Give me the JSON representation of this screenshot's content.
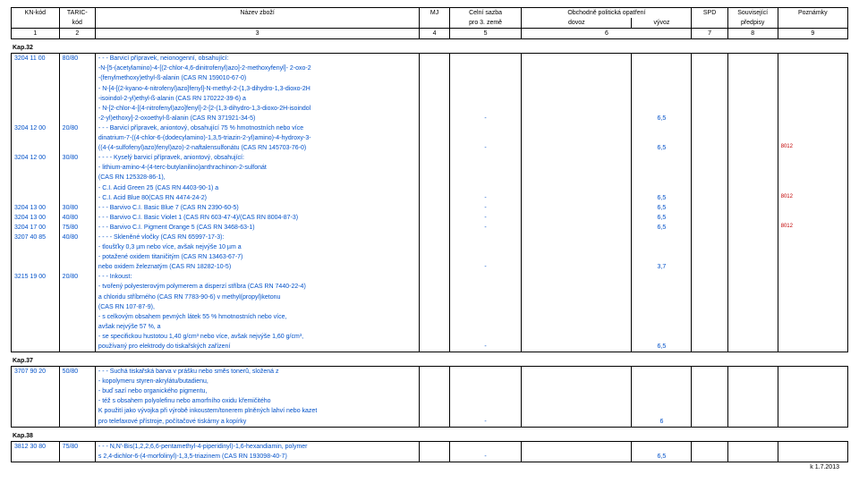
{
  "header": {
    "cols": [
      "KN-kód",
      "TARIC-",
      "Název zboží",
      "MJ",
      "Celní sazba",
      "Obchodně politická opatření",
      "SPD",
      "Související",
      "Poznámky"
    ],
    "sub": {
      "taric": "kód",
      "celni": "pro 3. země",
      "dovoz": "dovoz",
      "vyvoz": "vývoz",
      "souv": "předpisy"
    },
    "nums": [
      "1",
      "2",
      "3",
      "4",
      "5",
      "6",
      "7",
      "8",
      "9"
    ],
    "footer": "k 1.7.2013"
  },
  "chapters": [
    {
      "title": "Kap.32",
      "rows": [
        {
          "kn": "3204 11 00",
          "taric": "80/80",
          "text": "- - - Barvicí přípravek, neionogenní, obsahující:",
          "blue": true
        },
        {
          "text": "-N-[5-(acetylamino)-4-[(2-chlor-4,6-dinitrofenyl)azo]-2-methoxyfenyl]- 2-oxo-2",
          "blue": true
        },
        {
          "text": "-(fenylmethoxy)ethyl-ß-alanin (CAS RN 159010-67-0)",
          "blue": true
        },
        {
          "text": "- N-[4-[(2-kyano-4-nitrofenyl)azo]fenyl]-N-methyl-2-(1,3-dihydro-1,3-dioxo-2H",
          "blue": true
        },
        {
          "text": "-isoindol-2-yl)ethyl-ß-alanin (CAS RN 170222-39-6) a",
          "blue": true
        },
        {
          "text": "- N-[2-chlor-4-[(4-nitrofenyl)azo]fenyl]-2-[2-(1,3-dihydro-1,3-dioxo-2H-isoindol",
          "blue": true
        },
        {
          "text": "-2-yl)ethoxy]-2-oxoethyl-ß-alanin (CAS RN 371921-34-5)",
          "blue": true,
          "celni": "-",
          "vyvoz": "6,5"
        },
        {
          "kn": "3204 12 00",
          "taric": "20/80",
          "text": "- - - Barvicí přípravek, aniontový, obsahující 75 % hmotnostních nebo více",
          "blue": true
        },
        {
          "text": "dinatrium-7-((4-chlor-6-(dodecylamino)-1,3,5-triazin-2-yl)amino)-4-hydroxy-3-",
          "blue": true
        },
        {
          "text": "((4-(4-sulfofenyl)azo)fenyl)azo)-2-naftalensulfonátu (CAS RN 145703-76-0)",
          "blue": true,
          "celni": "-",
          "vyvoz": "6,5",
          "note": "8012"
        },
        {
          "kn": "3204 12 00",
          "taric": "30/80",
          "text": "- - - - Kyselý barvicí přípravek, aniontový, obsahující:",
          "blue": true
        },
        {
          "text": "- lithium-amino-4-(4-terc-butylanilino)anthrachinon-2-sulfonát",
          "blue": true
        },
        {
          "text": "(CAS RN 125328-86-1),",
          "blue": true
        },
        {
          "text": "- C.I. Acid Green 25 (CAS RN 4403-90-1) a",
          "blue": true
        },
        {
          "text": "- C.I. Acid Blue 80(CAS RN 4474-24-2)",
          "blue": true,
          "celni": "-",
          "vyvoz": "6,5",
          "note": "8012"
        },
        {
          "kn": "3204 13 00",
          "taric": "30/80",
          "text": "- - - Barvivo C.I. Basic Blue 7 (CAS RN 2390-60-5)",
          "blue": true,
          "celni": "-",
          "vyvoz": "6,5"
        },
        {
          "kn": "3204 13 00",
          "taric": "40/80",
          "text": "- - - Barvivo C.I. Basic Violet 1 (CAS RN 603-47-4)/(CAS RN 8004-87-3)",
          "blue": true,
          "celni": "-",
          "vyvoz": "6,5"
        },
        {
          "kn": "3204 17 00",
          "taric": "75/80",
          "text": "- - - Barvivo C.I. Pigment Orange 5 (CAS RN 3468-63-1)",
          "blue": true,
          "celni": "-",
          "vyvoz": "6,5",
          "note": "8012"
        },
        {
          "kn": "3207 40 85",
          "taric": "40/80",
          "text": "- - - - Skleněné vločky (CAS RN 65997-17-3):",
          "blue": true
        },
        {
          "text": "- tloušťky 0,3 µm nebo více, avšak nejvýše 10 µm a",
          "blue": true
        },
        {
          "text": "- potažené oxidem titaničitým (CAS RN 13463-67-7)",
          "blue": true
        },
        {
          "text": "nebo oxidem železnatým (CAS RN 18282-10-5)",
          "blue": true,
          "celni": "-",
          "vyvoz": "3,7"
        },
        {
          "kn": "3215 19 00",
          "taric": "20/80",
          "text": "- - - Inkoust:",
          "blue": true
        },
        {
          "text": "- tvořený polyesterovým polymerem a disperzí stříbra (CAS RN 7440-22-4)",
          "blue": true
        },
        {
          "text": "a chloridu stříbrného (CAS RN 7783-90-6) v methyl(propyl)ketonu",
          "blue": true
        },
        {
          "text": "(CAS RN 107-87-9),",
          "blue": true
        },
        {
          "text": "- s celkovým obsahem pevných látek 55 % hmotnostních nebo více,",
          "blue": true
        },
        {
          "text": "avšak nejvýše 57 %, a",
          "blue": true
        },
        {
          "text": "- se specifickou hustotou 1,40 g/cm³ nebo více, avšak nejvýše 1,60 g/cm³,",
          "blue": true
        },
        {
          "text": "používaný pro elektrody do tiskařských zařízení",
          "blue": true,
          "celni": "-",
          "vyvoz": "6,5",
          "last": true
        }
      ]
    },
    {
      "title": "Kap.37",
      "rows": [
        {
          "kn": "3707 90 20",
          "taric": "50/80",
          "text": "- - - Suchá tiskařská barva v prášku nebo směs tonerů, složená z",
          "blue": true
        },
        {
          "text": "- kopolymeru styren-akrylátu/butadienu,",
          "blue": true
        },
        {
          "text": "- buď sazí nebo organického pigmentu,",
          "blue": true
        },
        {
          "text": "- též s obsahem polyolefinu nebo amorfního oxidu křemičitého",
          "blue": true
        },
        {
          "text": "K použití jako vývojka při výrobě inkoustem/tonerem plněných lahví nebo kazet",
          "blue": true
        },
        {
          "text": "pro telefaxové přístroje, počítačové tiskárny a kopírky",
          "blue": true,
          "celni": "-",
          "vyvoz": "6",
          "last": true
        }
      ]
    },
    {
      "title": "Kap.38",
      "rows": [
        {
          "kn": "3812 30 80",
          "taric": "75/80",
          "text": "- - - N,N'-Bis(1,2,2,6,6-pentamethyl-4-piperidinyl)-1,6-hexandiamin, polymer",
          "blue": true
        },
        {
          "text": "s 2,4-dichlor-6-(4-morfolinyl)-1,3,5-triazinem (CAS RN 193098-40-7)",
          "blue": true,
          "celni": "-",
          "vyvoz": "6,5",
          "last": true
        }
      ]
    }
  ]
}
